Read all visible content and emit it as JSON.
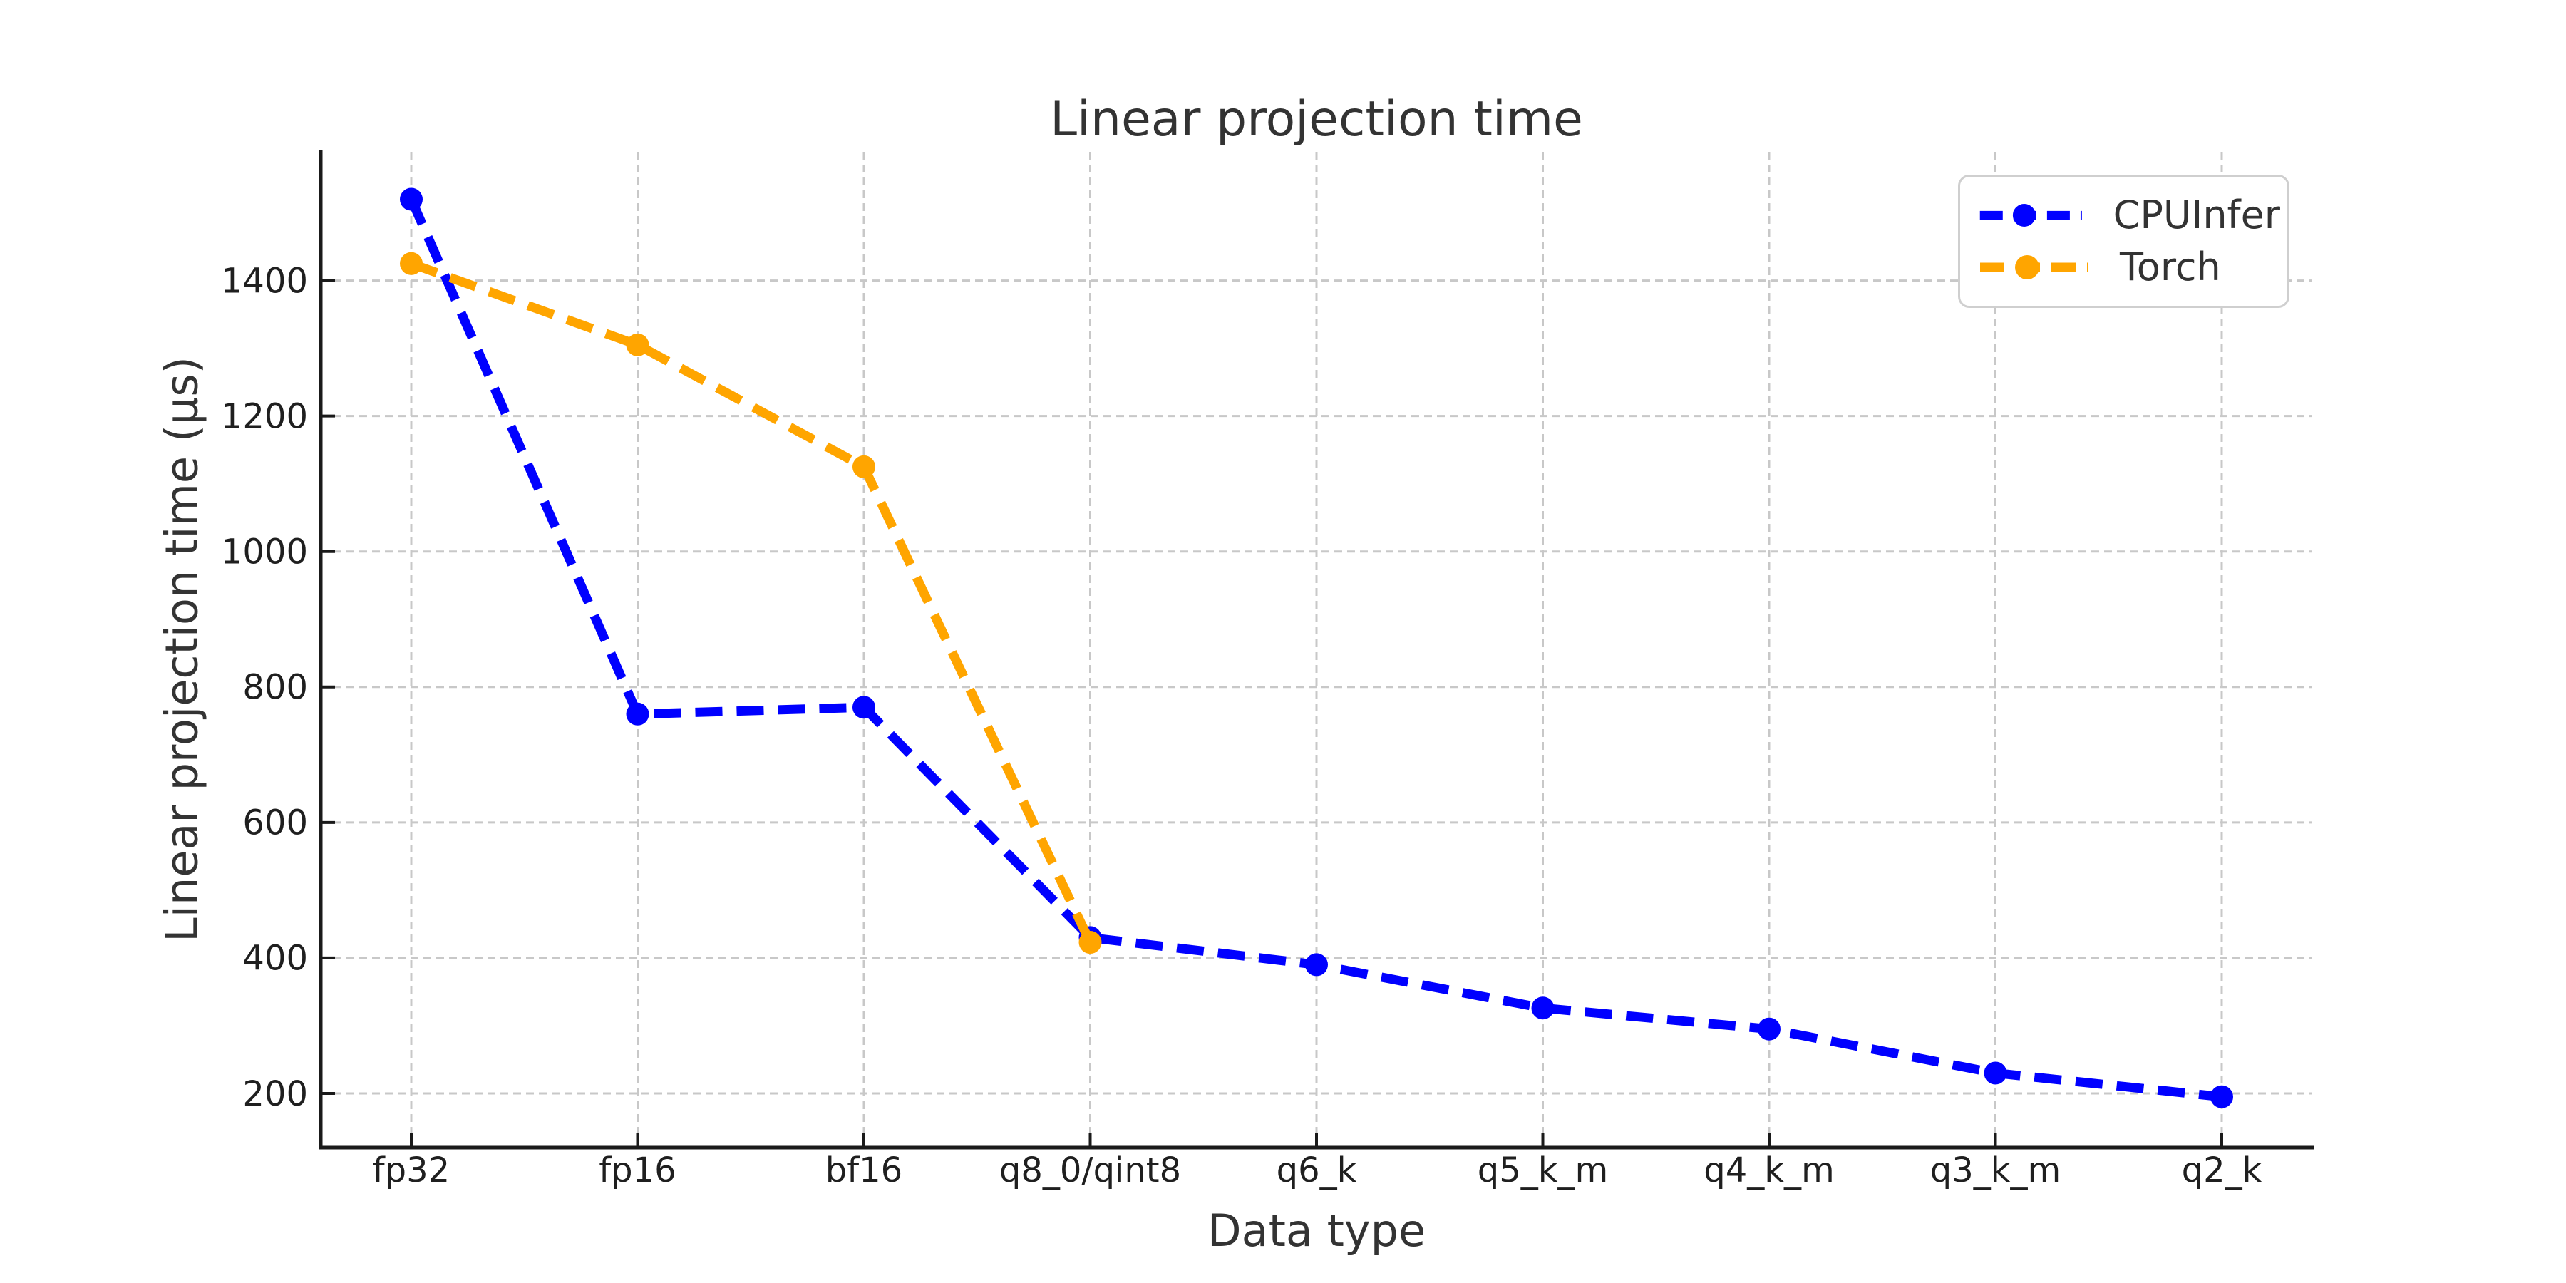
{
  "chart_data": {
    "type": "line",
    "title": "Linear projection time",
    "xlabel": "Data type",
    "ylabel": "Linear projection time (μs)",
    "categories": [
      "fp32",
      "fp16",
      "bf16",
      "q8_0/qint8",
      "q6_k",
      "q5_k_m",
      "q4_k_m",
      "q3_k_m",
      "q2_k"
    ],
    "series": [
      {
        "name": "CPUInfer",
        "color": "#0000ff",
        "line_style": "dashed",
        "marker": "circle",
        "values": [
          1520,
          760,
          770,
          430,
          390,
          326,
          295,
          230,
          195
        ]
      },
      {
        "name": "Torch",
        "color": "#ffa500",
        "line_style": "dashed",
        "marker": "circle",
        "values": [
          1425,
          1305,
          1125,
          423,
          null,
          null,
          null,
          null,
          null
        ]
      }
    ],
    "y_ticks": [
      200,
      400,
      600,
      800,
      1000,
      1200,
      1400
    ],
    "ylim": [
      120,
      1590
    ],
    "grid": true,
    "grid_color": "#c8c8c8",
    "legend_position": "upper right",
    "background_color": "#ffffff"
  }
}
